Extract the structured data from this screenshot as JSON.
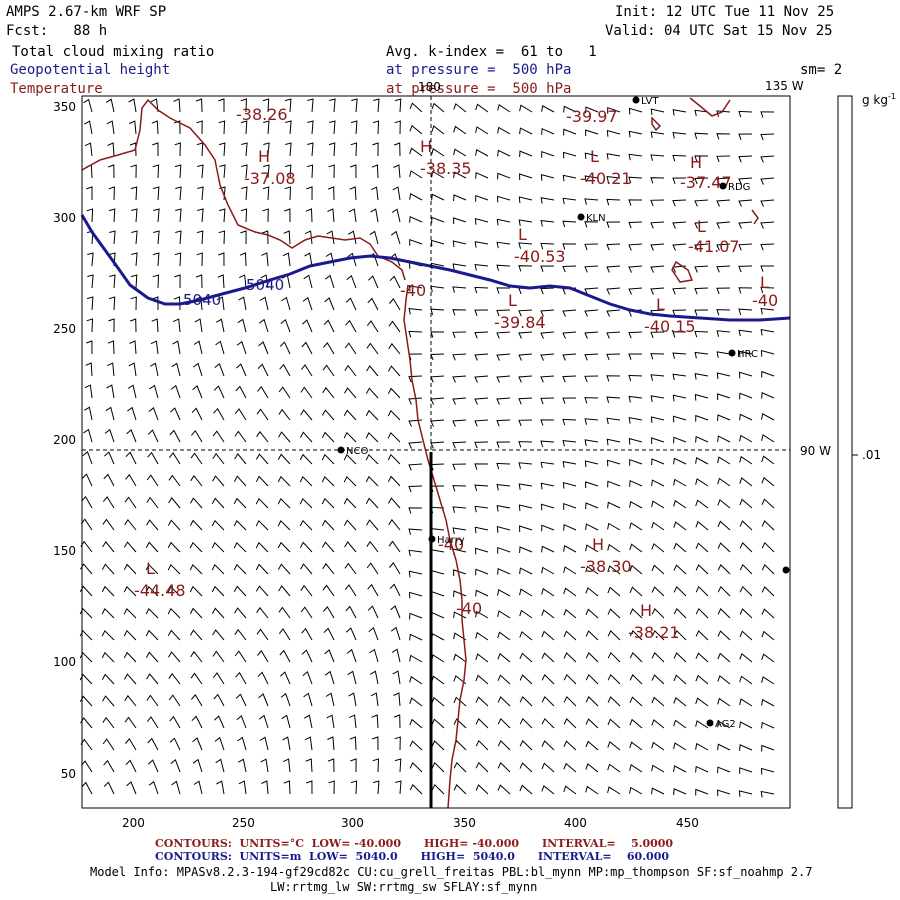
{
  "header": {
    "model": "AMPS 2.67-km WRF SP",
    "fcst": "Fcst:   88 h",
    "init": "Init: 12 UTC Tue 11 Nov 25",
    "valid": "Valid: 04 UTC Sat 15 Nov 25",
    "field1": "Total cloud mixing ratio",
    "field2": "Geopotential height",
    "field3": "Temperature",
    "avg": "Avg. k-index =  61 to   1",
    "pressure1": "at pressure =  500 hPa",
    "pressure2": "at pressure =  500 hPa",
    "sm": "sm= 2"
  },
  "axes": {
    "x_ticks": [
      "200",
      "250",
      "300",
      "350",
      "400",
      "450"
    ],
    "y_ticks": [
      "350",
      "300",
      "250",
      "200",
      "150",
      "100",
      "50"
    ],
    "lon_top": "180",
    "lon_top_right": "135 W",
    "lon_right": "90 W"
  },
  "colorbar": {
    "unit": "g kg",
    "unit_sup": "-1",
    "value": ".01"
  },
  "map_labels": [
    {
      "text": "-38.26"
    },
    {
      "text": "H"
    },
    {
      "text": "-37.08"
    },
    {
      "text": "H"
    },
    {
      "text": "-38.35"
    },
    {
      "text": "-39.97"
    },
    {
      "text": "L"
    },
    {
      "text": "-40.21"
    },
    {
      "text": "H"
    },
    {
      "text": "-37.47"
    },
    {
      "text": "L"
    },
    {
      "text": "-40.53"
    },
    {
      "text": "L"
    },
    {
      "text": "-41.07"
    },
    {
      "text": "L"
    },
    {
      "text": "-40"
    },
    {
      "text": "-40"
    },
    {
      "text": "L"
    },
    {
      "text": "-39.84"
    },
    {
      "text": "L"
    },
    {
      "text": "-40.15"
    },
    {
      "text": "-40"
    },
    {
      "text": "-40"
    },
    {
      "text": "H"
    },
    {
      "text": "-38.30"
    },
    {
      "text": "H"
    },
    {
      "text": "-38.21"
    },
    {
      "text": "L"
    },
    {
      "text": "-44.48"
    }
  ],
  "height_labels": [
    "5040",
    "5040"
  ],
  "stations": [
    "LVT",
    "RDG",
    "KLN",
    "HRC",
    "NCO",
    "Harry",
    "AG2"
  ],
  "contours": {
    "line1": "CONTOURS:  UNITS=°C  LOW= -40.000      HIGH= -40.000      INTERVAL=    5.0000",
    "line2": "CONTOURS:  UNITS=m  LOW=  5040.0      HIGH=  5040.0      INTERVAL=    60.000"
  },
  "model_info": {
    "line1": "Model Info: MPASv8.2.3-194-gf29cd82c CU:cu_grell_freitas PBL:bl_mynn MP:mp_thompson SF:sf_noahmp 2.7",
    "line2": "LW:rrtmg_lw SW:rrtmg_sw SFLAY:sf_mynn"
  },
  "colors": {
    "height_contour": "#1a1a8c",
    "temperature": "#8b1a1a",
    "wind": "#000000"
  }
}
